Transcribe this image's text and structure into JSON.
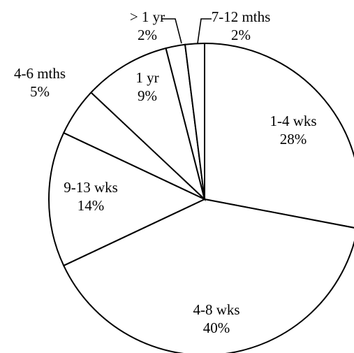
{
  "chart_data": {
    "type": "pie",
    "slices": [
      {
        "label": "1-4 wks",
        "value": 28,
        "pct_label": "28%"
      },
      {
        "label": "4-8 wks",
        "value": 40,
        "pct_label": "40%"
      },
      {
        "label": "9-13 wks",
        "value": 14,
        "pct_label": "14%"
      },
      {
        "label": "4-6 mths",
        "value": 5,
        "pct_label": "5%"
      },
      {
        "label": "1 yr",
        "value": 9,
        "pct_label": "9%"
      },
      {
        "label": "> 1 yr",
        "value": 2,
        "pct_label": "2%"
      },
      {
        "label": "7-12 mths",
        "value": 2,
        "pct_label": "2%"
      }
    ],
    "start_angle": "12 o'clock",
    "direction": "clockwise",
    "colors": {
      "fill": "#ffffff",
      "stroke": "#000000"
    },
    "legend": "none"
  }
}
